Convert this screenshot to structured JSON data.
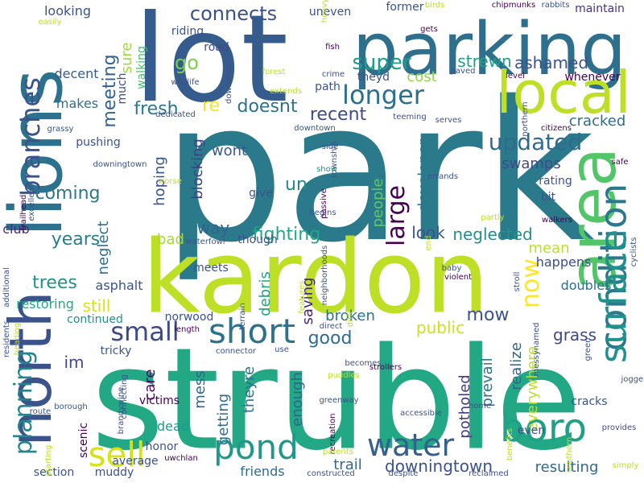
{
  "words": [
    {
      "text": "park",
      "color": "#2b7a8c",
      "rotated": false
    },
    {
      "text": "struble",
      "color": "#22a884",
      "rotated": false
    },
    {
      "text": "lot",
      "color": "#365c8d",
      "rotated": false
    },
    {
      "text": "kardon",
      "color": "#bddf26",
      "rotated": false
    },
    {
      "text": "parking",
      "color": "#2e6f8e",
      "rotated": false
    },
    {
      "text": "lions",
      "color": "#2c718e",
      "rotated": true
    },
    {
      "text": "area",
      "color": "#52c569",
      "rotated": true
    },
    {
      "text": "local",
      "color": "#bddf26",
      "rotated": false
    },
    {
      "text": "north",
      "color": "#3b528b",
      "rotated": true
    },
    {
      "text": "condition",
      "color": "#2a788e",
      "rotated": true
    },
    {
      "text": "surface",
      "color": "#21918c",
      "rotated": true
    },
    {
      "text": "boro",
      "color": "#1fa187",
      "rotated": false
    },
    {
      "text": "water",
      "color": "#355f8d",
      "rotated": false
    },
    {
      "text": "pond",
      "color": "#1f988b",
      "rotated": false
    },
    {
      "text": "short",
      "color": "#2c728e",
      "rotated": false
    },
    {
      "text": "sell",
      "color": "#d8e219",
      "rotated": false
    },
    {
      "text": "small",
      "color": "#3e4989",
      "rotated": false
    },
    {
      "text": "branches",
      "color": "#3b528b",
      "rotated": true
    },
    {
      "text": "planning",
      "color": "#25848e",
      "rotated": true
    },
    {
      "text": "longer",
      "color": "#2d708e",
      "rotated": false
    },
    {
      "text": "large",
      "color": "#440154",
      "rotated": true
    },
    {
      "text": "now",
      "color": "#fde725",
      "rotated": true
    },
    {
      "text": "updated",
      "color": "#306a8e",
      "rotated": false
    },
    {
      "text": "connects",
      "color": "#3a538b",
      "rotated": false
    },
    {
      "text": "super",
      "color": "#1f9e89",
      "rotated": false
    },
    {
      "text": "meeting",
      "color": "#33638d",
      "rotated": true
    },
    {
      "text": "go",
      "color": "#7ad151",
      "rotated": false
    },
    {
      "text": "fresh",
      "color": "#2a788e",
      "rotated": false
    },
    {
      "text": "re",
      "color": "#f5e61f",
      "rotated": false
    },
    {
      "text": "doesnt",
      "color": "#2c718e",
      "rotated": false
    },
    {
      "text": "recent",
      "color": "#3e4a89",
      "rotated": false
    },
    {
      "text": "ashamed",
      "color": "#3b528b",
      "rotated": false
    },
    {
      "text": "strewn",
      "color": "#1fa088",
      "rotated": false
    },
    {
      "text": "cost",
      "color": "#8ed645",
      "rotated": false
    },
    {
      "text": "cracked",
      "color": "#2f6c8e",
      "rotated": false
    },
    {
      "text": "developer",
      "color": "#2a788e",
      "rotated": true
    },
    {
      "text": "swamps",
      "color": "#3e4989",
      "rotated": false
    },
    {
      "text": "people",
      "color": "#5ec962",
      "rotated": true
    },
    {
      "text": "un",
      "color": "#23898e",
      "rotated": false
    },
    {
      "text": "coming",
      "color": "#2a788e",
      "rotated": false
    },
    {
      "text": "years",
      "color": "#277f8e",
      "rotated": false
    },
    {
      "text": "neglected",
      "color": "#21918c",
      "rotated": false
    },
    {
      "text": "look",
      "color": "#3b528b",
      "rotated": false
    },
    {
      "text": "fighting",
      "color": "#22a785",
      "rotated": false
    },
    {
      "text": "blocking",
      "color": "#424186",
      "rotated": true
    },
    {
      "text": "hoping",
      "color": "#3a548c",
      "rotated": true
    },
    {
      "text": "wont",
      "color": "#375a8c",
      "rotated": false
    },
    {
      "text": "way",
      "color": "#33638d",
      "rotated": false
    },
    {
      "text": "neglect",
      "color": "#2e6e8e",
      "rotated": true
    },
    {
      "text": "bad",
      "color": "#a5db36",
      "rotated": false
    },
    {
      "text": "mean",
      "color": "#bddf26",
      "rotated": false
    },
    {
      "text": "trees",
      "color": "#21918c",
      "rotated": false
    },
    {
      "text": "still",
      "color": "#d8e219",
      "rotated": false
    },
    {
      "text": "debris",
      "color": "#20a386",
      "rotated": true
    },
    {
      "text": "saving",
      "color": "#482475",
      "rotated": true
    },
    {
      "text": "mow",
      "color": "#3b528b",
      "rotated": false
    },
    {
      "text": "broken",
      "color": "#2c728e",
      "rotated": false
    },
    {
      "text": "good",
      "color": "#2f6c8e",
      "rotated": false
    },
    {
      "text": "public",
      "color": "#d0e11c",
      "rotated": false
    },
    {
      "text": "grass",
      "color": "#3f4788",
      "rotated": false
    },
    {
      "text": "im",
      "color": "#3e4989",
      "rotated": false
    },
    {
      "text": "care",
      "color": "#46085c",
      "rotated": true
    },
    {
      "text": "mess",
      "color": "#31668e",
      "rotated": true
    },
    {
      "text": "getting",
      "color": "#2e6e8e",
      "rotated": true
    },
    {
      "text": "theyre",
      "color": "#2d708e",
      "rotated": true
    },
    {
      "text": "enough",
      "color": "#32658e",
      "rotated": true
    },
    {
      "text": "potholed",
      "color": "#433e85",
      "rotated": true
    },
    {
      "text": "prevail",
      "color": "#2d718e",
      "rotated": true
    },
    {
      "text": "realize",
      "color": "#32648e",
      "rotated": true
    },
    {
      "text": "everywhere",
      "color": "#bddf26",
      "rotated": true
    },
    {
      "text": "dead",
      "color": "#1e9c89",
      "rotated": false
    },
    {
      "text": "friends",
      "color": "#2f6b8e",
      "rotated": false
    },
    {
      "text": "trail",
      "color": "#31688e",
      "rotated": false
    },
    {
      "text": "downingtown",
      "color": "#3b528b",
      "rotated": false
    },
    {
      "text": "resulting",
      "color": "#306a8e",
      "rotated": false
    },
    {
      "text": "doubles",
      "color": "#2e6e8e",
      "rotated": false
    },
    {
      "text": "happens",
      "color": "#3d4e8a",
      "rotated": false
    },
    {
      "text": "asphalt",
      "color": "#3b528b",
      "rotated": false
    },
    {
      "text": "restoring",
      "color": "#22a884",
      "rotated": false
    },
    {
      "text": "club",
      "color": "#472d7b",
      "rotated": false
    },
    {
      "text": "looking",
      "color": "#3b528b",
      "rotated": false
    },
    {
      "text": "sure",
      "color": "#a0da39",
      "rotated": true
    },
    {
      "text": "decent",
      "color": "#375b8d",
      "rotated": false
    },
    {
      "text": "makes",
      "color": "#2c728e",
      "rotated": false
    },
    {
      "text": "much",
      "color": "#3b528b",
      "rotated": true
    },
    {
      "text": "walking",
      "color": "#4ac16d",
      "rotated": true
    },
    {
      "text": "riding",
      "color": "#3b528b",
      "rotated": false
    },
    {
      "text": "road",
      "color": "#3e4989",
      "rotated": false
    },
    {
      "text": "uneven",
      "color": "#3b528b",
      "rotated": false
    },
    {
      "text": "former",
      "color": "#3b528b",
      "rotated": false
    },
    {
      "text": "maintain",
      "color": "#46337f",
      "rotated": false
    },
    {
      "text": "theyd",
      "color": "#3b528b",
      "rotated": false
    },
    {
      "text": "path",
      "color": "#3b528b",
      "rotated": false
    },
    {
      "text": "whenever",
      "color": "#440154",
      "rotated": false
    },
    {
      "text": "give",
      "color": "#3b528b",
      "rotated": false
    },
    {
      "text": "though",
      "color": "#3b528b",
      "rotated": false
    },
    {
      "text": "bit",
      "color": "#3b528b",
      "rotated": false
    },
    {
      "text": "rating",
      "color": "#3b528b",
      "rotated": false
    },
    {
      "text": "tricky",
      "color": "#3b528b",
      "rotated": false
    },
    {
      "text": "continued",
      "color": "#21918c",
      "rotated": false
    },
    {
      "text": "norwood",
      "color": "#3b528b",
      "rotated": false
    },
    {
      "text": "meets",
      "color": "#3b528b",
      "rotated": false
    },
    {
      "text": "victims",
      "color": "#440154",
      "rotated": false
    },
    {
      "text": "scenic",
      "color": "#440154",
      "rotated": true
    },
    {
      "text": "honor",
      "color": "#3b528b",
      "rotated": false
    },
    {
      "text": "average",
      "color": "#3b528b",
      "rotated": false
    },
    {
      "text": "muddy",
      "color": "#3b528b",
      "rotated": false
    },
    {
      "text": "section",
      "color": "#3b528b",
      "rotated": false
    },
    {
      "text": "cracks",
      "color": "#3b528b",
      "rotated": false
    },
    {
      "text": "even",
      "color": "#3b528b",
      "rotated": false
    },
    {
      "text": "pushing",
      "color": "#3b528b",
      "rotated": false
    },
    {
      "text": "downpour",
      "color": "#3b528b",
      "rotated": true
    },
    {
      "text": "fish",
      "color": "#440154",
      "rotated": false
    },
    {
      "text": "birds",
      "color": "#bddf26",
      "rotated": false
    },
    {
      "text": "chipmunks",
      "color": "#440154",
      "rotated": false
    },
    {
      "text": "rabbits",
      "color": "#3b528b",
      "rotated": false
    },
    {
      "text": "gets",
      "color": "#440154",
      "rotated": false
    },
    {
      "text": "heavy",
      "color": "#bddf26",
      "rotated": true
    },
    {
      "text": "paved",
      "color": "#3b528b",
      "rotated": false
    },
    {
      "text": "level",
      "color": "#440154",
      "rotated": false
    },
    {
      "text": "crime",
      "color": "#3b528b",
      "rotated": false
    },
    {
      "text": "wildlife",
      "color": "#3b528b",
      "rotated": false
    },
    {
      "text": "extends",
      "color": "#bddf26",
      "rotated": false
    },
    {
      "text": "forest",
      "color": "#bddf26",
      "rotated": false
    },
    {
      "text": "teeming",
      "color": "#3b528b",
      "rotated": false
    },
    {
      "text": "northern",
      "color": "#3b528b",
      "rotated": true
    },
    {
      "text": "citizens",
      "color": "#440154",
      "rotated": false
    },
    {
      "text": "downtown",
      "color": "#3b528b",
      "rotated": false
    },
    {
      "text": "serves",
      "color": "#3b528b",
      "rotated": false
    },
    {
      "text": "side",
      "color": "#3b528b",
      "rotated": false
    },
    {
      "text": "township",
      "color": "#3b528b",
      "rotated": true
    },
    {
      "text": "show",
      "color": "#21918c",
      "rotated": false
    },
    {
      "text": "errands",
      "color": "#3b528b",
      "rotated": false
    },
    {
      "text": "begins",
      "color": "#3b528b",
      "rotated": false
    },
    {
      "text": "passive",
      "color": "#440154",
      "rotated": true
    },
    {
      "text": "easily",
      "color": "#bddf26",
      "rotated": false
    },
    {
      "text": "grassy",
      "color": "#3b528b",
      "rotated": false
    },
    {
      "text": "dedicated",
      "color": "#3b528b",
      "rotated": false
    },
    {
      "text": "downingtown",
      "color": "#3b528b",
      "rotated": false
    },
    {
      "text": "worse",
      "color": "#bddf26",
      "rotated": false
    },
    {
      "text": "excellent",
      "color": "#3b528b",
      "rotated": true
    },
    {
      "text": "trailhead",
      "color": "#440154",
      "rotated": true
    },
    {
      "text": "waterfowl",
      "color": "#3b528b",
      "rotated": false
    },
    {
      "text": "partly",
      "color": "#bddf26",
      "rotated": false
    },
    {
      "text": "walkers",
      "color": "#440154",
      "rotated": false
    },
    {
      "text": "safe",
      "color": "#440154",
      "rotated": false
    },
    {
      "text": "cyclists",
      "color": "#3b528b",
      "rotated": true
    },
    {
      "text": "end",
      "color": "#bddf26",
      "rotated": true
    },
    {
      "text": "baby",
      "color": "#3b528b",
      "rotated": false
    },
    {
      "text": "violent",
      "color": "#440154",
      "rotated": false
    },
    {
      "text": "neighborhoods",
      "color": "#3b528b",
      "rotated": true
    },
    {
      "text": "stroll",
      "color": "#3b528b",
      "rotated": true
    },
    {
      "text": "features",
      "color": "#bddf26",
      "rotated": true
    },
    {
      "text": "different",
      "color": "#bddf26",
      "rotated": true
    },
    {
      "text": "terrain",
      "color": "#3b528b",
      "rotated": true
    },
    {
      "text": "direct",
      "color": "#3b528b",
      "rotated": false
    },
    {
      "text": "length",
      "color": "#440154",
      "rotated": false
    },
    {
      "text": "connector",
      "color": "#3b528b",
      "rotated": false
    },
    {
      "text": "use",
      "color": "#3b528b",
      "rotated": false
    },
    {
      "text": "becomes",
      "color": "#3b528b",
      "rotated": false
    },
    {
      "text": "strollers",
      "color": "#440154",
      "rotated": false
    },
    {
      "text": "puddles",
      "color": "#bddf26",
      "rotated": false
    },
    {
      "text": "messynamed",
      "color": "#3b528b",
      "rotated": true
    },
    {
      "text": "green",
      "color": "#3b528b",
      "rotated": true
    },
    {
      "text": "joggers",
      "color": "#3b528b",
      "rotated": false
    },
    {
      "text": "provides",
      "color": "#3b528b",
      "rotated": false
    },
    {
      "text": "additional",
      "color": "#3b528b",
      "rotated": true
    },
    {
      "text": "residents",
      "color": "#3b528b",
      "rotated": true
    },
    {
      "text": "heading",
      "color": "#bddf26",
      "rotated": true
    },
    {
      "text": "connecting",
      "color": "#3b528b",
      "rotated": true
    },
    {
      "text": "brandywine",
      "color": "#3b528b",
      "rotated": true
    },
    {
      "text": "borough",
      "color": "#3b528b",
      "rotated": false
    },
    {
      "text": "route",
      "color": "#3b528b",
      "rotated": false
    },
    {
      "text": "starting",
      "color": "#bddf26",
      "rotated": true
    },
    {
      "text": "recreation",
      "color": "#440154",
      "rotated": true
    },
    {
      "text": "parents",
      "color": "#bddf26",
      "rotated": false
    },
    {
      "text": "uwchlan",
      "color": "#440154",
      "rotated": false
    },
    {
      "text": "greenway",
      "color": "#3b528b",
      "rotated": false
    },
    {
      "text": "accessible",
      "color": "#3b528b",
      "rotated": false
    },
    {
      "text": "home",
      "color": "#3b528b",
      "rotated": false
    },
    {
      "text": "benefits",
      "color": "#bddf26",
      "rotated": true
    },
    {
      "text": "southern",
      "color": "#bddf26",
      "rotated": true
    },
    {
      "text": "simply",
      "color": "#bddf26",
      "rotated": false
    },
    {
      "text": "constructed",
      "color": "#3b528b",
      "rotated": false
    },
    {
      "text": "despite",
      "color": "#3b528b",
      "rotated": false
    },
    {
      "text": "reclaimed",
      "color": "#3b528b",
      "rotated": false
    },
    {
      "text": "brownfield",
      "color": "#bddf26",
      "rotated": false
    },
    {
      "text": "monument",
      "color": "#bddf26",
      "rotated": false
    }
  ]
}
